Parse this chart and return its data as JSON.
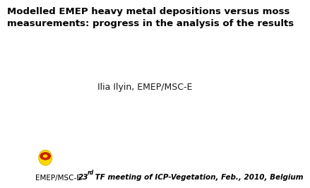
{
  "title_line1": "Modelled EMEP heavy metal depositions versus moss",
  "title_line2": "measurements: progress in the analysis of the results",
  "author": "Ilia Ilyin, EMEP/MSC-E",
  "footer_org": "EMEP/MSC-E",
  "footer_num": "23",
  "footer_sup": "rd",
  "footer_rest": " TF meeting of ICP-Vegetation, Feb., 2010, Belgium",
  "bg_color": "#ffffff",
  "title_color": "#000000",
  "author_color": "#1a1a1a",
  "footer_color": "#000000",
  "title_fontsize": 9.5,
  "author_fontsize": 9.0,
  "footer_fontsize": 7.5,
  "footer_super_fontsize": 5.5,
  "footer_org_fontsize": 7.5
}
